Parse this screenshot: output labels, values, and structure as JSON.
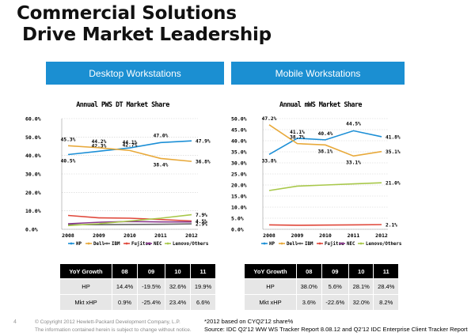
{
  "title": {
    "line1": "Commercial Solutions",
    "line2": "Drive Market Leadership"
  },
  "banners": {
    "left": "Desktop Workstations",
    "right": "Mobile Workstations"
  },
  "colors": {
    "HP": "#1c8fd6",
    "Dell": "#e8a93a",
    "IBM": "#666666",
    "Fujitsu": "#e0483b",
    "NEC": "#8b3a8f",
    "Lenovo/Others": "#a8c84a",
    "banner": "#1b8fd2"
  },
  "chart_data": [
    {
      "type": "line",
      "title": "Annual PWS DT Market Share",
      "x": [
        "2008",
        "2009",
        "2010",
        "2011",
        "2012"
      ],
      "ylim": [
        0,
        60
      ],
      "yticks": [
        "0.0%",
        "10.0%",
        "20.0%",
        "30.0%",
        "40.0%",
        "50.0%",
        "60.0%"
      ],
      "legend": [
        "HP",
        "Dell",
        "IBM",
        "Fujitsu",
        "NEC",
        "Lenovo/Others"
      ],
      "legend_position": "bottom",
      "series": [
        {
          "name": "HP",
          "values": [
            40.5,
            42.3,
            44.1,
            47.0,
            47.9
          ],
          "labels": [
            "40.5%",
            "42.3%",
            "44.1%",
            "47.0%",
            "47.9%"
          ]
        },
        {
          "name": "Dell",
          "values": [
            45.3,
            44.2,
            42.7,
            38.4,
            36.8
          ],
          "labels": [
            "45.3%",
            "44.2%",
            "42.7%",
            "38.4%",
            "36.8%"
          ]
        },
        {
          "name": "IBM",
          "values": [
            2.5,
            2.5,
            2.6,
            2.7,
            2.9
          ],
          "labels": [
            "",
            "",
            "",
            "",
            "2.9%"
          ]
        },
        {
          "name": "Fujitsu",
          "values": [
            7.5,
            6.2,
            6.0,
            5.3,
            4.5
          ],
          "labels": [
            "",
            "",
            "",
            "",
            "4.5%"
          ]
        },
        {
          "name": "NEC",
          "values": [
            3.0,
            3.8,
            4.2,
            4.0,
            4.0
          ],
          "labels": [
            "",
            "",
            "",
            "",
            ""
          ]
        },
        {
          "name": "Lenovo/Others",
          "values": [
            2.0,
            3.0,
            4.5,
            6.0,
            7.9
          ],
          "labels": [
            "",
            "",
            "",
            "",
            "7.9%"
          ]
        }
      ]
    },
    {
      "type": "line",
      "title": "Annual mWS Market Share",
      "x": [
        "2008",
        "2009",
        "2010",
        "2011",
        "2012"
      ],
      "ylim": [
        0,
        50
      ],
      "yticks": [
        "0.0%",
        "5.0%",
        "10.0%",
        "15.0%",
        "20.0%",
        "25.0%",
        "30.0%",
        "35.0%",
        "40.0%",
        "45.0%",
        "50.0%"
      ],
      "legend": [
        "HP",
        "Dell",
        "IBM",
        "Fujitsu",
        "NEC",
        "Lenovo/Others"
      ],
      "legend_position": "bottom",
      "series": [
        {
          "name": "HP",
          "values": [
            33.8,
            41.1,
            40.4,
            44.5,
            41.8
          ],
          "labels": [
            "33.8%",
            "41.1%",
            "40.4%",
            "44.5%",
            "41.8%"
          ]
        },
        {
          "name": "Dell",
          "values": [
            47.2,
            38.7,
            38.1,
            33.1,
            35.1
          ],
          "labels": [
            "47.2%",
            "38.7%",
            "38.1%",
            "33.1%",
            "35.1%"
          ]
        },
        {
          "name": "Fujitsu",
          "values": [
            2.0,
            1.8,
            1.9,
            2.0,
            2.1
          ],
          "labels": [
            "",
            "",
            "",
            "",
            "2.1%"
          ]
        },
        {
          "name": "Lenovo/Others",
          "values": [
            17.5,
            19.5,
            20.0,
            20.5,
            21.0
          ],
          "labels": [
            "",
            "",
            "",
            "",
            "21.0%"
          ]
        }
      ]
    }
  ],
  "tables": {
    "left": {
      "header": [
        "YoY Growth",
        "08",
        "09",
        "10",
        "11"
      ],
      "rows": [
        [
          "HP",
          "14.4%",
          "-19.5%",
          "32.6%",
          "19.9%"
        ],
        [
          "Mkt xHP",
          "0.9%",
          "-25.4%",
          "23.4%",
          "6.6%"
        ]
      ]
    },
    "right": {
      "header": [
        "YoY Growth",
        "08",
        "09",
        "10",
        "11"
      ],
      "rows": [
        [
          "HP",
          "38.0%",
          "5.6%",
          "28.1%",
          "28.4%"
        ],
        [
          "Mkt xHP",
          "3.6%",
          "-22.6%",
          "32.0%",
          "8.2%"
        ]
      ]
    }
  },
  "footer": {
    "page_number": "4",
    "copyright": "© Copyright 2012 Hewlett-Packard Development Company, L.P.",
    "disclaimer": "The information contained herein is subject to change without notice.",
    "note1": "*2012 based on CYQ2'12 share%",
    "note2": "Source: IDC Q2'12 WW WS Tracker Report 8.08.12 and Q2'12 IDC Enterprise Client Tracker Report"
  }
}
